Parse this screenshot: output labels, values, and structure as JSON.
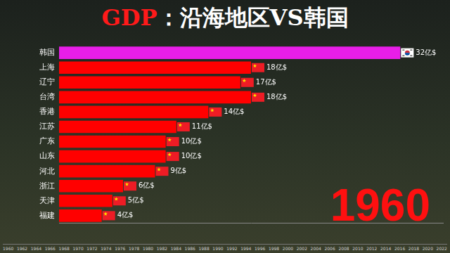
{
  "chart_data": {
    "type": "bar",
    "title": "GDP：沿海地区VS韩国",
    "orientation": "horizontal",
    "categories": [
      "韩国",
      "上海",
      "辽宁",
      "台湾",
      "香港",
      "江苏",
      "广东",
      "山东",
      "河北",
      "浙江",
      "天津",
      "福建"
    ],
    "values": [
      32,
      18,
      17,
      18,
      14,
      11,
      10,
      10,
      9,
      6,
      5,
      4
    ],
    "value_labels": [
      "32亿$",
      "18亿$",
      "17亿$",
      "18亿$",
      "14亿$",
      "11亿$",
      "10亿$",
      "10亿$",
      "9亿$",
      "6亿$",
      "5亿$",
      "4亿$"
    ],
    "colors": [
      "#e81ee8",
      "#ff0000",
      "#ff0000",
      "#ff0000",
      "#ff0000",
      "#ff0000",
      "#ff0000",
      "#ff0000",
      "#ff0000",
      "#ff0000",
      "#ff0000",
      "#ff0000"
    ],
    "xlim": [
      0,
      36
    ],
    "grid": false,
    "tick_labels": "y",
    "data_labels": true,
    "annotations": [
      "1960"
    ],
    "timeline": [
      1960,
      1962,
      1964,
      1966,
      1968,
      1970,
      1972,
      1974,
      1976,
      1978,
      1980,
      1982,
      1984,
      1986,
      1988,
      1990,
      1992,
      1994,
      1996,
      1998,
      2000,
      2002,
      2004,
      2006,
      2008,
      2010,
      2012,
      2014,
      2016,
      2018,
      2020,
      2022
    ]
  }
}
